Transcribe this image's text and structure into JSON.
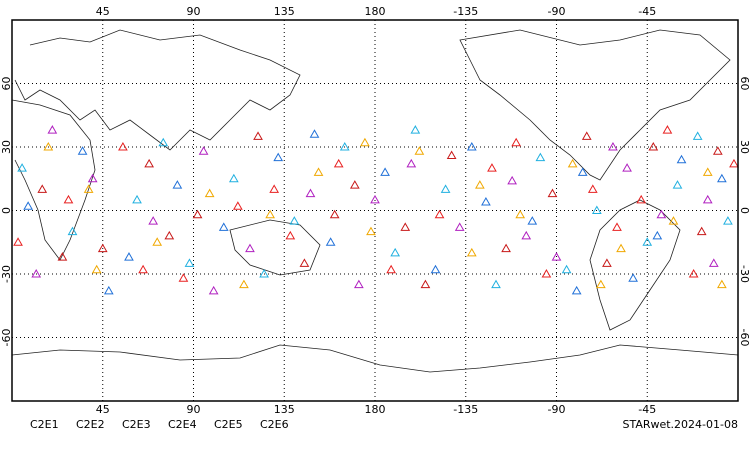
{
  "chart_data": {
    "type": "map",
    "footer": "STARwet.2024-01-08",
    "xlim": [
      0,
      360
    ],
    "ylim": [
      -90,
      90
    ],
    "xticks": [
      45,
      90,
      135,
      180,
      {
        "value": 225,
        "label": "-135"
      },
      {
        "value": 270,
        "label": "-90"
      },
      {
        "value": 315,
        "label": "-45"
      }
    ],
    "yticks": [
      -60,
      -30,
      0,
      30,
      60
    ],
    "grid": true,
    "series": [
      {
        "name": "C2E1",
        "color": "#20b0e0",
        "points": [
          [
            5,
            20
          ],
          [
            30,
            -10
          ],
          [
            62,
            5
          ],
          [
            88,
            -25
          ],
          [
            110,
            15
          ],
          [
            140,
            -5
          ],
          [
            165,
            30
          ],
          [
            190,
            -20
          ],
          [
            215,
            10
          ],
          [
            240,
            -35
          ],
          [
            262,
            25
          ],
          [
            290,
            0
          ],
          [
            315,
            -15
          ],
          [
            340,
            35
          ],
          [
            355,
            -5
          ],
          [
            75,
            32
          ],
          [
            125,
            -30
          ],
          [
            200,
            38
          ],
          [
            275,
            -28
          ],
          [
            330,
            12
          ]
        ]
      },
      {
        "name": "C2E2",
        "color": "#b020c0",
        "points": [
          [
            12,
            -30
          ],
          [
            40,
            15
          ],
          [
            70,
            -5
          ],
          [
            95,
            28
          ],
          [
            118,
            -18
          ],
          [
            148,
            8
          ],
          [
            172,
            -35
          ],
          [
            198,
            22
          ],
          [
            222,
            -8
          ],
          [
            248,
            14
          ],
          [
            270,
            -22
          ],
          [
            298,
            30
          ],
          [
            322,
            -2
          ],
          [
            348,
            -25
          ],
          [
            20,
            38
          ],
          [
            100,
            -38
          ],
          [
            180,
            5
          ],
          [
            255,
            -12
          ],
          [
            305,
            20
          ],
          [
            345,
            5
          ]
        ]
      },
      {
        "name": "C2E3",
        "color": "#2070d8",
        "points": [
          [
            8,
            2
          ],
          [
            35,
            28
          ],
          [
            58,
            -22
          ],
          [
            82,
            12
          ],
          [
            105,
            -8
          ],
          [
            132,
            25
          ],
          [
            158,
            -15
          ],
          [
            185,
            18
          ],
          [
            210,
            -28
          ],
          [
            235,
            4
          ],
          [
            258,
            -5
          ],
          [
            283,
            18
          ],
          [
            308,
            -32
          ],
          [
            332,
            24
          ],
          [
            352,
            15
          ],
          [
            48,
            -38
          ],
          [
            150,
            36
          ],
          [
            228,
            30
          ],
          [
            280,
            -38
          ],
          [
            320,
            -12
          ]
        ]
      },
      {
        "name": "C2E4",
        "color": "#c81818",
        "points": [
          [
            15,
            10
          ],
          [
            45,
            -18
          ],
          [
            68,
            22
          ],
          [
            92,
            -2
          ],
          [
            122,
            35
          ],
          [
            145,
            -25
          ],
          [
            170,
            12
          ],
          [
            195,
            -8
          ],
          [
            218,
            26
          ],
          [
            245,
            -18
          ],
          [
            268,
            8
          ],
          [
            295,
            -25
          ],
          [
            318,
            30
          ],
          [
            342,
            -10
          ],
          [
            25,
            -22
          ],
          [
            78,
            -12
          ],
          [
            160,
            -2
          ],
          [
            205,
            -35
          ],
          [
            285,
            35
          ],
          [
            350,
            28
          ]
        ]
      },
      {
        "name": "C2E5",
        "color": "#e82020",
        "points": [
          [
            3,
            -15
          ],
          [
            28,
            5
          ],
          [
            55,
            30
          ],
          [
            85,
            -32
          ],
          [
            112,
            2
          ],
          [
            138,
            -12
          ],
          [
            162,
            22
          ],
          [
            188,
            -28
          ],
          [
            212,
            -2
          ],
          [
            238,
            20
          ],
          [
            265,
            -30
          ],
          [
            288,
            10
          ],
          [
            312,
            5
          ],
          [
            338,
            -30
          ],
          [
            358,
            22
          ],
          [
            65,
            -28
          ],
          [
            130,
            10
          ],
          [
            250,
            32
          ],
          [
            300,
            -8
          ],
          [
            325,
            38
          ]
        ]
      },
      {
        "name": "C2E6",
        "color": "#f0a800",
        "points": [
          [
            18,
            30
          ],
          [
            42,
            -28
          ],
          [
            72,
            -15
          ],
          [
            98,
            8
          ],
          [
            128,
            -2
          ],
          [
            152,
            18
          ],
          [
            178,
            -10
          ],
          [
            202,
            28
          ],
          [
            228,
            -20
          ],
          [
            252,
            -2
          ],
          [
            278,
            22
          ],
          [
            302,
            -18
          ],
          [
            328,
            -5
          ],
          [
            352,
            -35
          ],
          [
            38,
            10
          ],
          [
            115,
            -35
          ],
          [
            175,
            32
          ],
          [
            232,
            12
          ],
          [
            292,
            -35
          ],
          [
            345,
            18
          ]
        ]
      }
    ]
  }
}
